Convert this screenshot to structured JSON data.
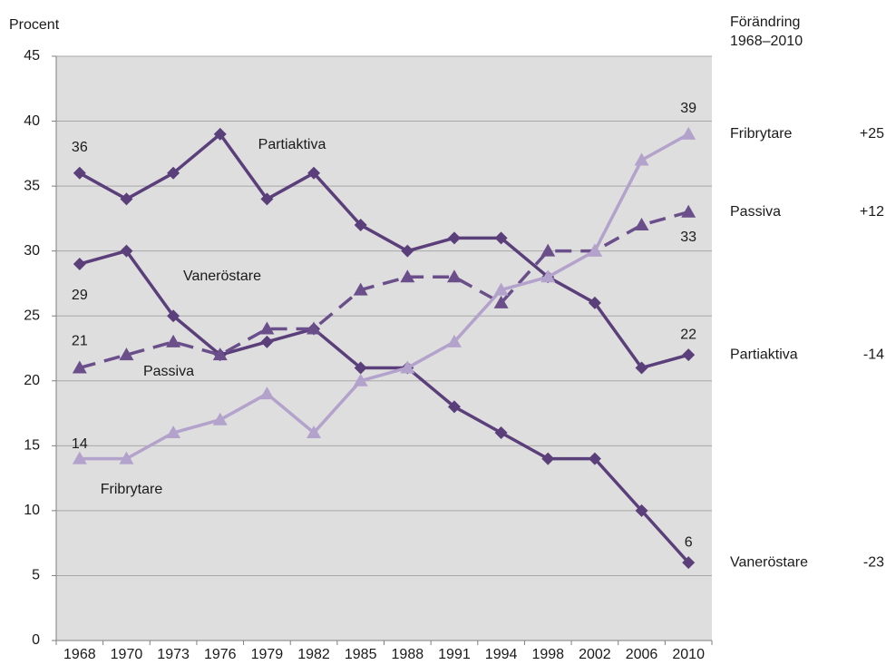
{
  "chart_data": {
    "type": "line",
    "y_label": "Procent",
    "side_title": [
      "Förändring",
      "1968–2010"
    ],
    "categories": [
      "1968",
      "1970",
      "1973",
      "1976",
      "1979",
      "1982",
      "1985",
      "1988",
      "1991",
      "1994",
      "1998",
      "2002",
      "2006",
      "2010"
    ],
    "series": [
      {
        "name": "Partiaktiva",
        "color": "#5b3f7a",
        "dash": false,
        "marker": "diamond",
        "change": "-14",
        "values": [
          36,
          34,
          36,
          39,
          34,
          36,
          32,
          30,
          31,
          31,
          28,
          26,
          21,
          22
        ],
        "value_labels": [
          "36",
          null,
          null,
          null,
          null,
          null,
          null,
          null,
          null,
          null,
          null,
          null,
          null,
          "22"
        ]
      },
      {
        "name": "Vaneröstare",
        "color": "#5b3f7a",
        "dash": false,
        "marker": "diamond",
        "change": "-23",
        "values": [
          29,
          30,
          25,
          22,
          23,
          24,
          21,
          21,
          18,
          16,
          14,
          14,
          10,
          6
        ],
        "value_labels": [
          "29",
          null,
          null,
          null,
          null,
          null,
          null,
          null,
          null,
          null,
          null,
          null,
          null,
          "6"
        ]
      },
      {
        "name": "Passiva",
        "color": "#6a4f8a",
        "dash": true,
        "marker": "triangle",
        "change": "+12",
        "values": [
          21,
          22,
          23,
          22,
          24,
          24,
          27,
          28,
          28,
          26,
          30,
          30,
          32,
          33
        ],
        "value_labels": [
          "21",
          null,
          null,
          null,
          null,
          null,
          null,
          null,
          null,
          null,
          null,
          null,
          null,
          "33"
        ]
      },
      {
        "name": "Fribrytare",
        "color": "#b3a2cb",
        "dash": false,
        "marker": "triangle",
        "change": "+25",
        "values": [
          14,
          14,
          16,
          17,
          19,
          16,
          20,
          21,
          23,
          27,
          28,
          30,
          37,
          39
        ],
        "value_labels": [
          "14",
          null,
          null,
          null,
          null,
          null,
          null,
          null,
          null,
          null,
          null,
          null,
          null,
          "39"
        ]
      }
    ],
    "ylim": [
      0,
      45
    ],
    "yticks": [
      0,
      5,
      10,
      15,
      20,
      25,
      30,
      35,
      40,
      45
    ],
    "grid": true
  }
}
